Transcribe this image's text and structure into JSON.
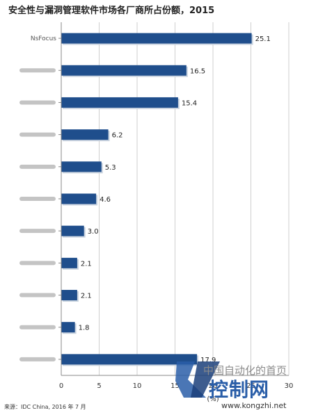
{
  "title": "安全性与漏洞管理软件市场各厂商所占份额，2015",
  "source": "来源：IDC China, 2016 年 7 月",
  "watermark": {
    "line1": "中国自动化的首页",
    "line2": "控制网",
    "line3": "www.kongzhi.net"
  },
  "chart_data": {
    "type": "bar",
    "orientation": "horizontal",
    "categories": [
      "NsFocus",
      "",
      "",
      "",
      "",
      "",
      "",
      "",
      "",
      "",
      ""
    ],
    "values": [
      25.1,
      16.5,
      15.4,
      6.2,
      5.3,
      4.6,
      3.0,
      2.1,
      2.1,
      1.8,
      17.9
    ],
    "value_labels": [
      "25.1",
      "16.5",
      "15.4",
      "6.2",
      "5.3",
      "4.6",
      "3.0",
      "2.1",
      "2.1",
      "1.8",
      "17.9"
    ],
    "xlim": [
      0,
      30
    ],
    "xticks": [
      "0",
      "5",
      "10",
      "15",
      "20",
      "25",
      "30"
    ],
    "xlabel": "(%)",
    "grid": true,
    "bar_color": "#1f4e8c"
  }
}
